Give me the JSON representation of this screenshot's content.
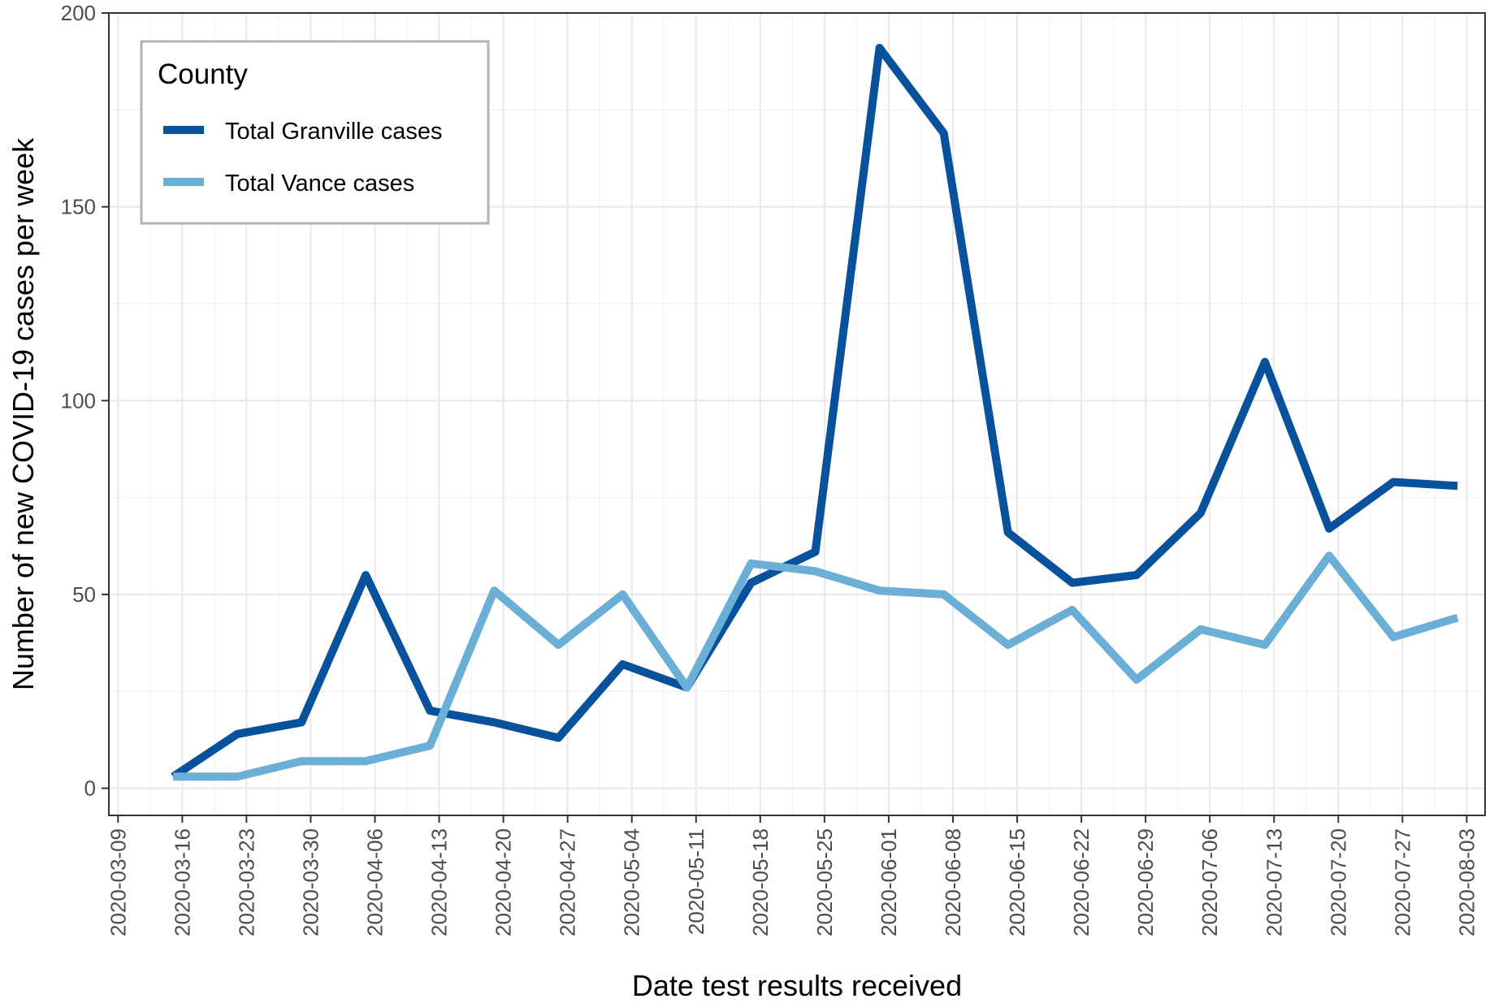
{
  "chart_data": {
    "type": "line",
    "xlabel": "Date test results received",
    "ylabel": "Number of new COVID-19 cases per week",
    "ylim": [
      -7,
      200
    ],
    "y_ticks": [
      0,
      50,
      100,
      150,
      200
    ],
    "x_range": [
      "2020-03-08",
      "2020-08-05"
    ],
    "x_ticks": [
      "2020-03-09",
      "2020-03-16",
      "2020-03-23",
      "2020-03-30",
      "2020-04-06",
      "2020-04-13",
      "2020-04-20",
      "2020-04-27",
      "2020-05-04",
      "2020-05-11",
      "2020-05-18",
      "2020-05-25",
      "2020-06-01",
      "2020-06-08",
      "2020-06-15",
      "2020-06-22",
      "2020-06-29",
      "2020-07-06",
      "2020-07-13",
      "2020-07-20",
      "2020-07-27",
      "2020-08-03"
    ],
    "grid": true,
    "legend": {
      "title": "County",
      "position": "top-left"
    },
    "x": [
      "2020-03-15",
      "2020-03-22",
      "2020-03-29",
      "2020-04-05",
      "2020-04-12",
      "2020-04-19",
      "2020-04-26",
      "2020-05-03",
      "2020-05-10",
      "2020-05-17",
      "2020-05-24",
      "2020-05-31",
      "2020-06-07",
      "2020-06-14",
      "2020-06-21",
      "2020-06-28",
      "2020-07-05",
      "2020-07-12",
      "2020-07-19",
      "2020-07-26",
      "2020-08-02"
    ],
    "series": [
      {
        "name": "Total Granville cases",
        "color": "#08519c",
        "values": [
          3,
          14,
          17,
          55,
          20,
          17,
          13,
          32,
          26,
          53,
          61,
          191,
          169,
          66,
          53,
          55,
          71,
          110,
          67,
          79,
          78
        ]
      },
      {
        "name": "Total Vance cases",
        "color": "#6baed6",
        "values": [
          3,
          3,
          7,
          7,
          11,
          51,
          37,
          50,
          26,
          58,
          56,
          51,
          50,
          37,
          46,
          28,
          41,
          37,
          60,
          39,
          44
        ]
      }
    ]
  }
}
